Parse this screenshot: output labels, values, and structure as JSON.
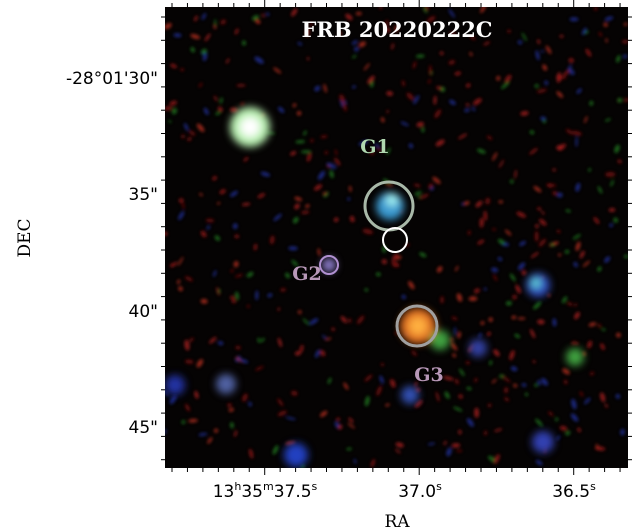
{
  "title": "FRB 20220222C",
  "x_label": "RA",
  "y_label": "DEC",
  "x_tick_labels": [
    {
      "parts": [
        "13",
        "h",
        "35",
        "m",
        "37.5",
        "s"
      ]
    },
    {
      "parts": [
        "37.0",
        "s"
      ]
    },
    {
      "parts": [
        "36.5",
        "s"
      ]
    }
  ],
  "y_tick_labels": [
    "-28°01'30\"",
    "35\"",
    "40\"",
    "45\""
  ],
  "sources": [
    {
      "label": "G1"
    },
    {
      "label": "G2"
    },
    {
      "label": "G3"
    }
  ]
}
